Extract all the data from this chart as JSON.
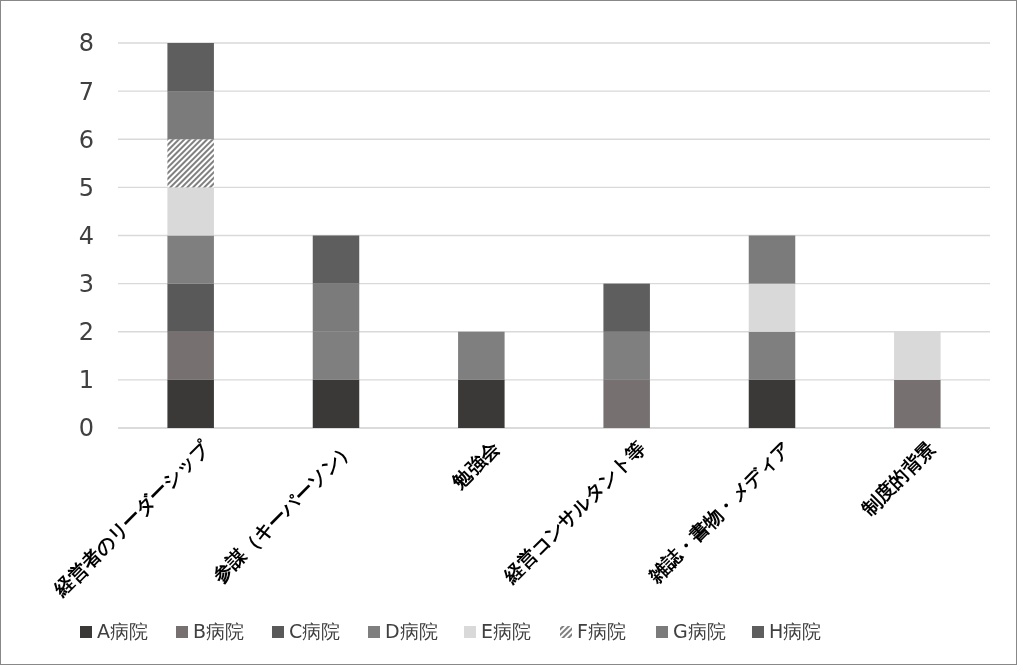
{
  "chart_data": {
    "type": "bar",
    "stacked": true,
    "categories": [
      "経営者のリーダーシップ",
      "参謀（キーパーソン）",
      "勉強会",
      "経営コンサルタント等",
      "雑誌・書物・メディア",
      "制度的背景"
    ],
    "series": [
      {
        "name": "A病院",
        "color": "#3b3937",
        "values": [
          1,
          1,
          1,
          0,
          1,
          0
        ]
      },
      {
        "name": "B病院",
        "color": "#767170",
        "values": [
          1,
          0,
          0,
          1,
          0,
          1
        ]
      },
      {
        "name": "C病院",
        "color": "#595959",
        "values": [
          1,
          0,
          0,
          0,
          0,
          0
        ]
      },
      {
        "name": "D病院",
        "color": "#7f7f7f",
        "values": [
          1,
          1,
          1,
          1,
          1,
          0
        ]
      },
      {
        "name": "E病院",
        "color": "#d9d9d9",
        "values": [
          1,
          0,
          0,
          0,
          1,
          1
        ]
      },
      {
        "name": "F病院",
        "color": "#808080",
        "values": [
          1,
          0,
          0,
          0,
          0,
          0
        ]
      },
      {
        "name": "G病院",
        "color": "#7b7b7b",
        "values": [
          1,
          1,
          0,
          0,
          1,
          0
        ]
      },
      {
        "name": "H病院",
        "color": "#5e5e5e",
        "values": [
          1,
          1,
          0,
          1,
          0,
          0
        ]
      }
    ],
    "ylim": [
      0,
      8
    ],
    "yticks": [
      0,
      1,
      2,
      3,
      4,
      5,
      6,
      7,
      8
    ],
    "grid": "y",
    "legend": "bottom"
  }
}
